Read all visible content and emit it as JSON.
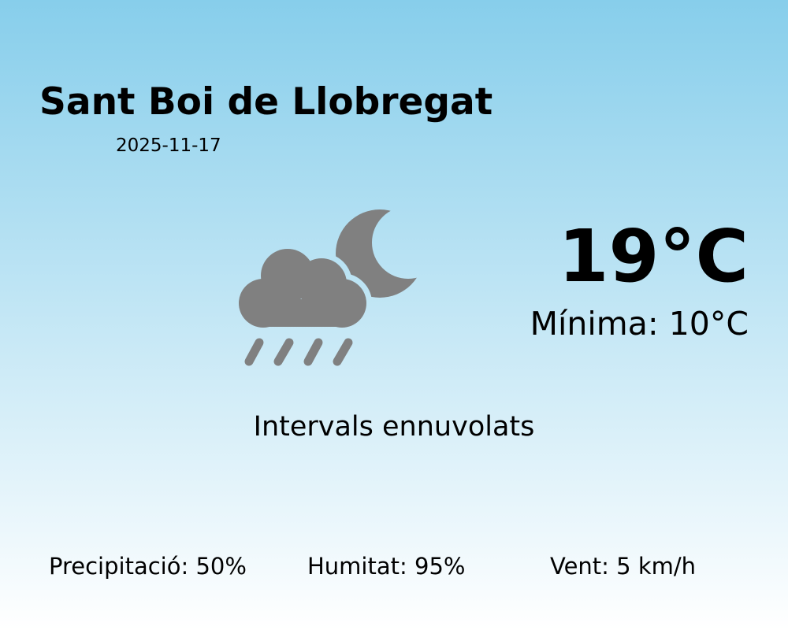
{
  "city": "Sant Boi de Llobregat",
  "date": "2025-11-17",
  "temperature": "19°C",
  "minimum": "Mínima: 10°C",
  "condition": "Intervals ennuvolats",
  "condition_icon": "cloud-moon-rain-icon",
  "icon_color": "#808080",
  "stats": {
    "precipitation": "Precipitació: 50%",
    "humidity": "Humitat: 95%",
    "wind": "Vent: 5 km/h"
  },
  "background_gradient": [
    "#87ceeb",
    "#ffffff"
  ]
}
